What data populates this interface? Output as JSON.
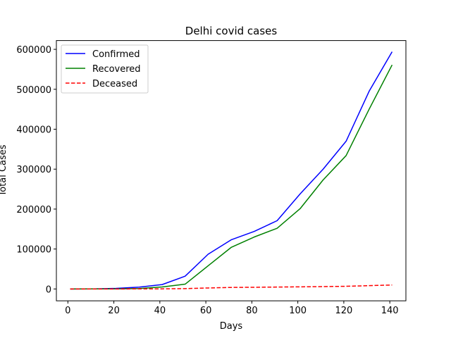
{
  "chart_data": {
    "type": "line",
    "title": "Delhi covid cases",
    "xlabel": "Days",
    "ylabel": "Total Cases",
    "xlim": [
      -5,
      147
    ],
    "ylim": [
      -29700,
      622000
    ],
    "xticks": [
      0,
      20,
      40,
      60,
      80,
      100,
      120,
      140
    ],
    "yticks": [
      0,
      100000,
      200000,
      300000,
      400000,
      500000,
      600000
    ],
    "xtick_labels": [
      "0",
      "20",
      "40",
      "60",
      "80",
      "100",
      "120",
      "140"
    ],
    "ytick_labels": [
      "0",
      "100000",
      "200000",
      "300000",
      "400000",
      "500000",
      "600000"
    ],
    "legend_position": "upper-left",
    "x": [
      1,
      11,
      21,
      31,
      41,
      51,
      61,
      71,
      81,
      91,
      101,
      111,
      121,
      131,
      141
    ],
    "series": [
      {
        "name": "Confirmed",
        "color": "#0000ff",
        "style": "solid",
        "values": [
          0,
          200,
          1500,
          4500,
          11000,
          32000,
          87000,
          123000,
          144000,
          171000,
          238000,
          300000,
          370000,
          495000,
          594000
        ]
      },
      {
        "name": "Recovered",
        "color": "#008000",
        "style": "solid",
        "values": [
          0,
          100,
          300,
          1000,
          5000,
          12000,
          58000,
          104000,
          130000,
          152000,
          201000,
          273000,
          334000,
          450000,
          561000
        ]
      },
      {
        "name": "Deceased",
        "color": "#ff0000",
        "style": "dashed",
        "values": [
          0,
          10,
          50,
          100,
          300,
          900,
          2500,
          3800,
          4200,
          4800,
          5300,
          5900,
          6700,
          8300,
          9900
        ]
      }
    ]
  }
}
